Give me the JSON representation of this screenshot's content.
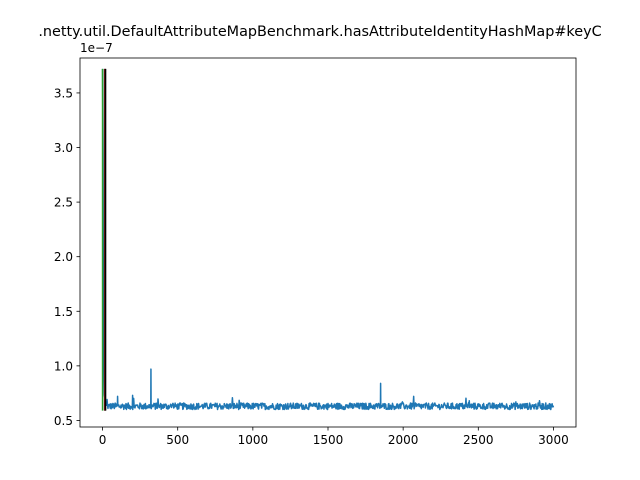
{
  "chart_data": {
    "type": "line",
    "title": ".netty.util.DefaultAttributeMapBenchmark.hasAttributeIdentityHashMap#keyC",
    "xlabel": "",
    "ylabel": "",
    "y_offset_label": "1e−7",
    "xlim": [
      -150,
      3150
    ],
    "ylim": [
      4.4e-08,
      3.82e-07
    ],
    "x_ticks": [
      0,
      500,
      1000,
      1500,
      2000,
      2500,
      3000
    ],
    "x_tick_labels": [
      "0",
      "500",
      "1000",
      "1500",
      "2000",
      "2500",
      "3000"
    ],
    "y_ticks": [
      5e-08,
      1e-07,
      1.5e-07,
      2e-07,
      2.5e-07,
      3e-07,
      3.5e-07
    ],
    "y_tick_labels": [
      "0.5",
      "1.0",
      "1.5",
      "2.0",
      "2.5",
      "3.0",
      "3.5"
    ],
    "grid": false,
    "series": [
      {
        "color": "#1f77b4",
        "baseline": 6.3e-08,
        "noise": 3e-09,
        "x_start": 0,
        "x_end": 3000,
        "points": [
          [
            0,
            3.72e-07
          ],
          [
            3,
            2.95e-07
          ],
          [
            6,
            1.2e-07
          ],
          [
            10,
            7.5e-08
          ],
          [
            20,
            6.6e-08
          ],
          [
            60,
            6.5e-08
          ],
          [
            100,
            7.2e-08
          ],
          [
            140,
            6.4e-08
          ],
          [
            200,
            7.3e-08
          ],
          [
            321,
            6.3e-08
          ],
          [
            322,
            9.7e-08
          ],
          [
            323,
            6.3e-08
          ],
          [
            1849,
            6.3e-08
          ],
          [
            1850,
            8.4e-08
          ],
          [
            1851,
            6.3e-08
          ],
          [
            2070,
            7.2e-08
          ],
          [
            2440,
            6.8e-08
          ],
          [
            2750,
            6.7e-08
          ],
          [
            3000,
            6.2e-08
          ]
        ]
      }
    ],
    "vertical_lines": [
      {
        "x": 0,
        "ymin": 5.9e-08,
        "ymax": 3.72e-07,
        "color": "#2ca02c"
      },
      {
        "x": 14,
        "ymin": 5.9e-08,
        "ymax": 3.72e-07,
        "color": "#000000"
      },
      {
        "x": 17,
        "ymin": 5.9e-08,
        "ymax": 3.72e-07,
        "color": "#d62728"
      },
      {
        "x": 20,
        "ymin": 5.9e-08,
        "ymax": 3.72e-07,
        "color": "#000000"
      }
    ]
  }
}
